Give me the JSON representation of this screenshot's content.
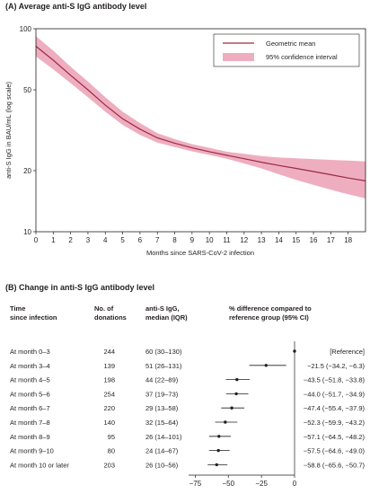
{
  "chart_data": [
    {
      "type": "line",
      "title": "(A) Average anti-S IgG antibody level",
      "xlabel": "Months since SARS-CoV-2 infection",
      "ylabel": "anti-S IgG in BAU/mL (log scale)",
      "yscale": "log",
      "xlim": [
        0,
        19
      ],
      "ylim": [
        10,
        100
      ],
      "x_ticks": [
        "0",
        "1",
        "2",
        "3",
        "4",
        "5",
        "6",
        "7",
        "8",
        "9",
        "10",
        "11",
        "12",
        "13",
        "14",
        "15",
        "16",
        "17",
        "18"
      ],
      "y_ticks": [
        "10",
        "20",
        "50",
        "100"
      ],
      "legend_position": "top-right",
      "colors": {
        "line": "#9c2a46",
        "band": "#eeaebf"
      },
      "series": [
        {
          "name": "Geometric mean",
          "x": [
            0,
            1,
            2,
            3,
            4,
            5,
            6,
            7,
            8,
            9,
            10,
            11,
            12,
            13,
            14,
            15,
            16,
            17,
            18,
            19
          ],
          "values": [
            82,
            70,
            59,
            50,
            42,
            36,
            32,
            29,
            27.3,
            25.9,
            24.8,
            23.8,
            22.9,
            22.0,
            21.2,
            20.5,
            19.8,
            19.1,
            18.4,
            17.8
          ]
        },
        {
          "name": "95% confidence interval",
          "x": [
            0,
            1,
            2,
            3,
            4,
            5,
            6,
            7,
            8,
            9,
            10,
            11,
            12,
            13,
            14,
            15,
            16,
            17,
            18,
            19
          ],
          "lower": [
            73,
            63,
            54,
            46,
            39,
            33.6,
            30,
            27.5,
            26.1,
            24.9,
            23.9,
            22.9,
            21.7,
            20.5,
            19.2,
            18,
            17,
            16.1,
            15.3,
            14.6
          ],
          "upper": [
            92,
            78,
            65,
            55,
            46,
            39,
            34.3,
            30.6,
            28.6,
            27,
            25.9,
            24.8,
            24.2,
            23.6,
            23.2,
            23,
            22.8,
            22.6,
            22.4,
            22.2
          ]
        }
      ]
    },
    {
      "type": "table",
      "title": "(B) Change in anti-S IgG antibody level",
      "headers": {
        "col1": [
          "Time",
          "since infection"
        ],
        "col2": [
          "No. of",
          "donations"
        ],
        "col3": [
          "anti-S IgG,",
          "median (IQR)"
        ],
        "col4": [
          "% difference compared to",
          "reference group (95% CI)"
        ]
      },
      "x_ticks": [
        -75,
        -50,
        -25,
        0
      ],
      "xlim": [
        -80,
        0
      ],
      "rows": [
        {
          "label": "At month 0–3",
          "n": "244",
          "median": "60 (30–130)",
          "ci_text": "[Reference]",
          "est": 0,
          "lo": 0,
          "hi": 0
        },
        {
          "label": "At month 3–4",
          "n": "139",
          "median": "51 (26–131)",
          "ci_text": "−21.5 (−34.2, −6.3)",
          "est": -21.5,
          "lo": -34.2,
          "hi": -6.3
        },
        {
          "label": "At month 4–5",
          "n": "198",
          "median": "44 (22–89)",
          "ci_text": "−43.5 (−51.8, −33.8)",
          "est": -43.5,
          "lo": -51.8,
          "hi": -33.8
        },
        {
          "label": "At month 5–6",
          "n": "254",
          "median": "37 (19–73)",
          "ci_text": "−44.0 (−51.7, −34.9)",
          "est": -44.0,
          "lo": -51.7,
          "hi": -34.9
        },
        {
          "label": "At month 6–7",
          "n": "220",
          "median": "29 (13–58)",
          "ci_text": "−47.4 (−55.4, −37.9)",
          "est": -47.4,
          "lo": -55.4,
          "hi": -37.9
        },
        {
          "label": "At month 7–8",
          "n": "140",
          "median": "32 (15–64)",
          "ci_text": "−52.3 (−59.9, −43.2)",
          "est": -52.3,
          "lo": -59.9,
          "hi": -43.2
        },
        {
          "label": "At month 8–9",
          "n": "95",
          "median": "26 (14–101)",
          "ci_text": "−57.1 (−64.5, −48.2)",
          "est": -57.1,
          "lo": -64.5,
          "hi": -48.2
        },
        {
          "label": "At month 9–10",
          "n": "80",
          "median": "24 (14–67)",
          "ci_text": "−57.5 (−64.6, −49.0)",
          "est": -57.5,
          "lo": -64.6,
          "hi": -49.0
        },
        {
          "label": "At month 10 or later",
          "n": "203",
          "median": "26 (10–56)",
          "ci_text": "−58.8 (−65.6, −50.7)",
          "est": -58.8,
          "lo": -65.6,
          "hi": -50.7
        }
      ]
    }
  ]
}
